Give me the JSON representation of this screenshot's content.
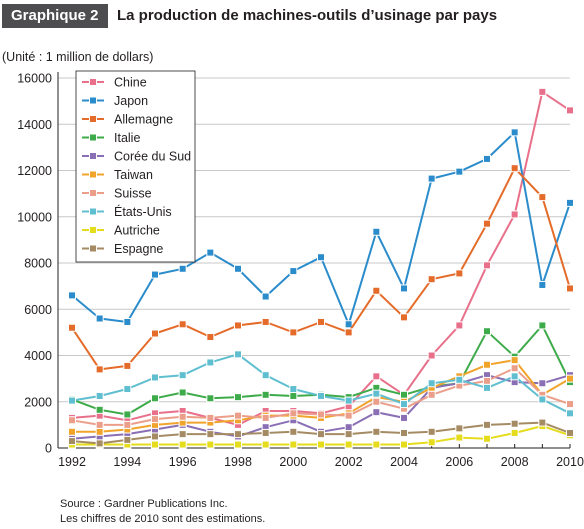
{
  "header": {
    "badge": "Graphique 2",
    "title": "La production de machines-outils d’usinage par pays"
  },
  "unit_label": "(Unité : 1 million de dollars)",
  "notes": {
    "source": "Source : Gardner Publications Inc.",
    "estimate": "Les chiffres de 2010 sont des estimations."
  },
  "colors": {
    "badge_bg": "#4d4d4f",
    "grid": "#c8c8c8",
    "axis": "#231f20"
  },
  "chart_data": {
    "type": "line",
    "x": [
      1992,
      1993,
      1994,
      1995,
      1996,
      1997,
      1998,
      1999,
      2000,
      2001,
      2002,
      2003,
      2004,
      2005,
      2006,
      2007,
      2008,
      2009,
      2010
    ],
    "xticks": [
      1992,
      1994,
      1996,
      1998,
      2000,
      2002,
      2004,
      2006,
      2008,
      2010
    ],
    "yticks": [
      0,
      2000,
      4000,
      6000,
      8000,
      10000,
      12000,
      14000,
      16000
    ],
    "ylim": [
      0,
      16000
    ],
    "xlim": [
      1992,
      2010
    ],
    "grid": "horizontal",
    "legend_position": "top-left",
    "series": [
      {
        "name": "Chine",
        "color": "#e8708a",
        "values": [
          1300,
          1400,
          1200,
          1500,
          1600,
          1300,
          1000,
          1600,
          1600,
          1500,
          1800,
          3100,
          2300,
          4000,
          5300,
          7900,
          10100,
          15400,
          14600
        ]
      },
      {
        "name": "Japon",
        "color": "#2b8ccb",
        "values": [
          6600,
          5600,
          5450,
          7500,
          7750,
          8450,
          7750,
          6550,
          7650,
          8250,
          5350,
          9350,
          6900,
          11650,
          11950,
          12500,
          13650,
          7050,
          10600
        ]
      },
      {
        "name": "Allemagne",
        "color": "#e46b2a",
        "values": [
          5200,
          3400,
          3550,
          4950,
          5350,
          4800,
          5300,
          5450,
          5000,
          5450,
          5000,
          6800,
          5650,
          7300,
          7550,
          9700,
          12100,
          10850,
          6900
        ]
      },
      {
        "name": "Italie",
        "color": "#3eab4a",
        "values": [
          2100,
          1650,
          1450,
          2150,
          2400,
          2150,
          2200,
          2300,
          2250,
          2300,
          2200,
          2600,
          2300,
          2650,
          2800,
          5050,
          3950,
          5300,
          2850
        ]
      },
      {
        "name": "Corée du Sud",
        "color": "#8a6fb5",
        "values": [
          400,
          500,
          600,
          800,
          1000,
          700,
          500,
          900,
          1200,
          700,
          900,
          1550,
          1300,
          2600,
          2800,
          3150,
          2850,
          2800,
          3150
        ]
      },
      {
        "name": "Taiwan",
        "color": "#f0a42c",
        "values": [
          700,
          700,
          800,
          1000,
          1100,
          1100,
          1200,
          1400,
          1400,
          1300,
          1500,
          2200,
          2000,
          2600,
          3100,
          3600,
          3800,
          2300,
          3000
        ]
      },
      {
        "name": "Suisse",
        "color": "#eb9f8a",
        "values": [
          1200,
          1000,
          1000,
          1250,
          1350,
          1300,
          1400,
          1300,
          1500,
          1450,
          1400,
          2000,
          1700,
          2300,
          2700,
          2900,
          3450,
          2300,
          1900
        ]
      },
      {
        "name": "États-Unis",
        "color": "#5fbfd0",
        "values": [
          2050,
          2250,
          2550,
          3050,
          3150,
          3700,
          4050,
          3150,
          2550,
          2250,
          2050,
          2350,
          1900,
          2800,
          2950,
          2600,
          3100,
          2100,
          1500
        ]
      },
      {
        "name": "Autriche",
        "color": "#e6dc1e",
        "values": [
          150,
          150,
          150,
          150,
          150,
          150,
          150,
          150,
          150,
          150,
          150,
          150,
          150,
          250,
          450,
          400,
          650,
          950,
          550
        ]
      },
      {
        "name": "Espagne",
        "color": "#a58b63",
        "values": [
          300,
          200,
          350,
          500,
          600,
          600,
          600,
          650,
          700,
          600,
          600,
          700,
          650,
          700,
          850,
          1000,
          1050,
          1100,
          650
        ]
      }
    ]
  }
}
